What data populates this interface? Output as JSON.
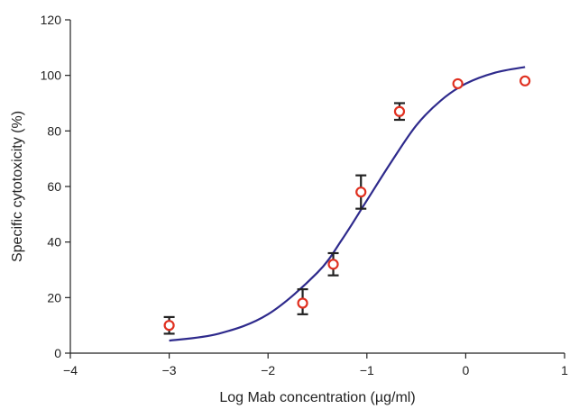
{
  "chart_data": {
    "type": "scatter",
    "title": "",
    "xlabel": "Log Mab concentration (µg/ml)",
    "ylabel": "Specific cytotoxicity (%)",
    "xlim": [
      -4,
      1
    ],
    "ylim": [
      0,
      120
    ],
    "xticks": [
      -4,
      -3,
      -2,
      -1,
      0,
      1
    ],
    "xtick_labels": [
      "−4",
      "−3",
      "−2",
      "−1",
      "0",
      "1"
    ],
    "yticks": [
      0,
      20,
      40,
      60,
      80,
      100,
      120
    ],
    "ytick_labels": [
      "0",
      "20",
      "40",
      "60",
      "80",
      "100",
      "120"
    ],
    "grid": false,
    "legend": "none",
    "colors": {
      "points": "#e03020",
      "curve": "#2e2a8c",
      "error_bars": "#222222"
    },
    "points": [
      {
        "x": -3.0,
        "y": 10,
        "y_low": 7,
        "y_high": 13
      },
      {
        "x": -1.65,
        "y": 18,
        "y_low": 14,
        "y_high": 23
      },
      {
        "x": -1.34,
        "y": 32,
        "y_low": 28,
        "y_high": 36
      },
      {
        "x": -1.06,
        "y": 58,
        "y_low": 52,
        "y_high": 64
      },
      {
        "x": -0.67,
        "y": 87,
        "y_low": 84,
        "y_high": 90
      },
      {
        "x": -0.08,
        "y": 97,
        "y_low": 97,
        "y_high": 97
      },
      {
        "x": 0.6,
        "y": 98,
        "y_low": 98,
        "y_high": 98
      }
    ],
    "fit_curve": {
      "type": "sigmoid",
      "x": [
        -3.0,
        -2.5,
        -2.0,
        -1.5,
        -1.25,
        -1.0,
        -0.75,
        -0.5,
        -0.25,
        0.0,
        0.3,
        0.6
      ],
      "y": [
        4.5,
        7,
        14,
        29,
        41,
        55,
        69,
        82,
        91,
        97,
        101,
        103
      ]
    }
  }
}
